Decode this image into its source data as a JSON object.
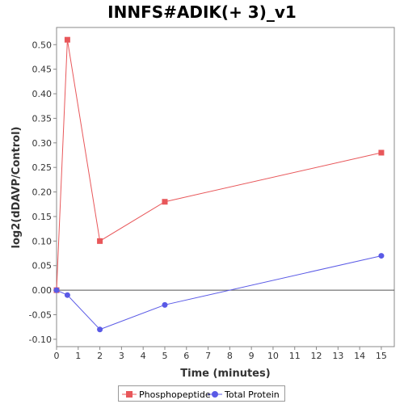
{
  "chart_data": {
    "type": "line",
    "title": "INNFS#ADIK(+ 3)_v1",
    "xlabel": "Time (minutes)",
    "ylabel": "log2(dDAVP/Control)",
    "xlim": [
      0,
      15.6
    ],
    "ylim": [
      -0.115,
      0.535
    ],
    "x_ticks": [
      0,
      1,
      2,
      3,
      4,
      5,
      6,
      7,
      8,
      9,
      10,
      11,
      12,
      13,
      14,
      15
    ],
    "y_ticks": [
      -0.1,
      -0.05,
      0.0,
      0.05,
      0.1,
      0.15,
      0.2,
      0.25,
      0.3,
      0.35,
      0.4,
      0.45,
      0.5
    ],
    "y_tick_labels": [
      "-0.10",
      "-0.05",
      "0.00",
      "0.05",
      "0.10",
      "0.15",
      "0.20",
      "0.25",
      "0.30",
      "0.35",
      "0.40",
      "0.45",
      "0.50"
    ],
    "zero_line": true,
    "grid": false,
    "legend_position": "bottom",
    "series": [
      {
        "name": "Phosphopeptide",
        "color": "#e8575a",
        "marker": "square",
        "x": [
          0,
          0.5,
          2,
          5,
          15
        ],
        "y": [
          0.0,
          0.51,
          0.1,
          0.18,
          0.28
        ]
      },
      {
        "name": "Total Protein",
        "color": "#5a5ae6",
        "marker": "circle",
        "x": [
          0,
          0.5,
          2,
          5,
          15
        ],
        "y": [
          0.0,
          -0.01,
          -0.08,
          -0.03,
          0.07
        ]
      }
    ]
  }
}
